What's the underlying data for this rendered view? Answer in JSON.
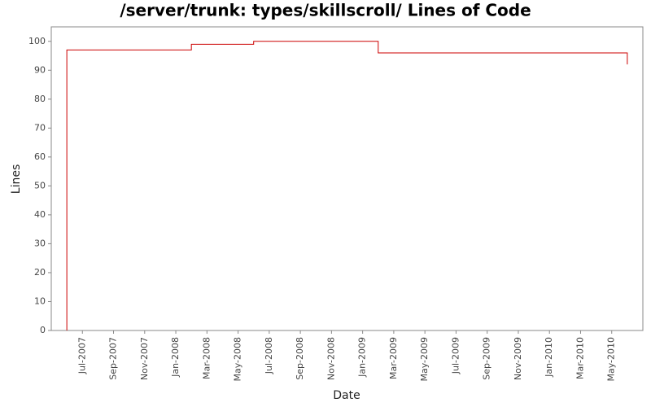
{
  "chart_data": {
    "type": "step",
    "title": "/server/trunk: types/skillscroll/ Lines of Code",
    "x_label": "Date",
    "y_label": "Lines",
    "x": [
      "2007-06",
      "2007-06",
      "2008-02",
      "2008-06",
      "2009-02",
      "2010-06",
      "2010-06"
    ],
    "values": [
      0,
      97,
      99,
      100,
      96,
      96,
      92
    ],
    "color": "#cc0000",
    "xlim": [
      "2007-05",
      "2010-07"
    ],
    "xticks": [
      {
        "value": "2007-07",
        "label": "Jul-2007"
      },
      {
        "value": "2007-09",
        "label": "Sep-2007"
      },
      {
        "value": "2007-11",
        "label": "Nov-2007"
      },
      {
        "value": "2008-01",
        "label": "Jan-2008"
      },
      {
        "value": "2008-03",
        "label": "Mar-2008"
      },
      {
        "value": "2008-05",
        "label": "May-2008"
      },
      {
        "value": "2008-07",
        "label": "Jul-2008"
      },
      {
        "value": "2008-09",
        "label": "Sep-2008"
      },
      {
        "value": "2008-11",
        "label": "Nov-2008"
      },
      {
        "value": "2009-01",
        "label": "Jan-2009"
      },
      {
        "value": "2009-03",
        "label": "Mar-2009"
      },
      {
        "value": "2009-05",
        "label": "May-2009"
      },
      {
        "value": "2009-07",
        "label": "Jul-2009"
      },
      {
        "value": "2009-09",
        "label": "Sep-2009"
      },
      {
        "value": "2009-11",
        "label": "Nov-2009"
      },
      {
        "value": "2010-01",
        "label": "Jan-2010"
      },
      {
        "value": "2010-03",
        "label": "Mar-2010"
      },
      {
        "value": "2010-05",
        "label": "May-2010"
      }
    ],
    "ylim": [
      0,
      105
    ],
    "yticks": [
      0,
      10,
      20,
      30,
      40,
      50,
      60,
      70,
      80,
      90,
      100
    ]
  }
}
